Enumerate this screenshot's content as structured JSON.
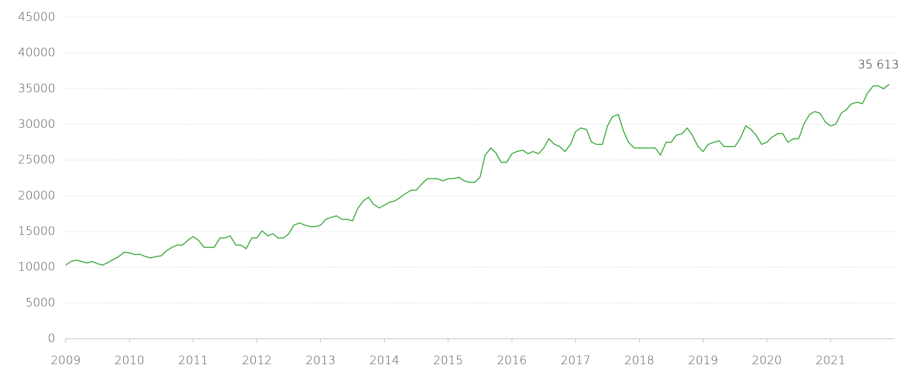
{
  "chart_data": {
    "type": "line",
    "annotation": "35 613",
    "xlim": [
      2009,
      2022
    ],
    "xticks": [
      2009,
      2010,
      2011,
      2012,
      2013,
      2014,
      2015,
      2016,
      2017,
      2018,
      2019,
      2020,
      2021
    ],
    "ylim": [
      0,
      45000
    ],
    "yticks": [
      0,
      5000,
      10000,
      15000,
      20000,
      25000,
      30000,
      35000,
      40000,
      45000
    ],
    "grid": true,
    "x": [
      2009.0,
      2009.08,
      2009.17,
      2009.25,
      2009.33,
      2009.42,
      2009.5,
      2009.58,
      2009.67,
      2009.75,
      2009.83,
      2009.92,
      2010.0,
      2010.08,
      2010.17,
      2010.25,
      2010.33,
      2010.42,
      2010.5,
      2010.58,
      2010.67,
      2010.75,
      2010.83,
      2010.92,
      2011.0,
      2011.08,
      2011.17,
      2011.25,
      2011.33,
      2011.42,
      2011.5,
      2011.58,
      2011.67,
      2011.75,
      2011.83,
      2011.92,
      2012.0,
      2012.08,
      2012.17,
      2012.25,
      2012.33,
      2012.42,
      2012.5,
      2012.58,
      2012.67,
      2012.75,
      2012.83,
      2012.92,
      2013.0,
      2013.08,
      2013.17,
      2013.25,
      2013.33,
      2013.42,
      2013.5,
      2013.58,
      2013.67,
      2013.75,
      2013.83,
      2013.92,
      2014.0,
      2014.08,
      2014.17,
      2014.25,
      2014.33,
      2014.42,
      2014.5,
      2014.58,
      2014.67,
      2014.75,
      2014.83,
      2014.92,
      2015.0,
      2015.08,
      2015.17,
      2015.25,
      2015.33,
      2015.42,
      2015.5,
      2015.58,
      2015.67,
      2015.75,
      2015.83,
      2015.92,
      2016.0,
      2016.08,
      2016.17,
      2016.25,
      2016.33,
      2016.42,
      2016.5,
      2016.58,
      2016.67,
      2016.75,
      2016.83,
      2016.92,
      2017.0,
      2017.08,
      2017.17,
      2017.25,
      2017.33,
      2017.42,
      2017.5,
      2017.58,
      2017.67,
      2017.75,
      2017.83,
      2017.92,
      2018.0,
      2018.08,
      2018.17,
      2018.25,
      2018.33,
      2018.42,
      2018.5,
      2018.58,
      2018.67,
      2018.75,
      2018.83,
      2018.92,
      2019.0,
      2019.08,
      2019.17,
      2019.25,
      2019.33,
      2019.42,
      2019.5,
      2019.58,
      2019.67,
      2019.75,
      2019.83,
      2019.92,
      2020.0,
      2020.08,
      2020.17,
      2020.25,
      2020.33,
      2020.42,
      2020.5,
      2020.58,
      2020.67,
      2020.75,
      2020.83,
      2020.92,
      2021.0,
      2021.08,
      2021.17,
      2021.25,
      2021.33,
      2021.42,
      2021.5,
      2021.58,
      2021.67,
      2021.75,
      2021.83,
      2021.92
    ],
    "series": [
      {
        "color": "#3aaa3a",
        "values": [
          10300,
          10800,
          11000,
          10800,
          10600,
          10800,
          10500,
          10300,
          10700,
          11100,
          11500,
          12100,
          12000,
          11800,
          11800,
          11500,
          11300,
          11500,
          11600,
          12300,
          12800,
          13100,
          13100,
          13800,
          14300,
          13800,
          12800,
          12800,
          12800,
          14100,
          14100,
          14400,
          13100,
          13100,
          12600,
          14100,
          14100,
          15100,
          14400,
          14700,
          14100,
          14100,
          14700,
          15900,
          16200,
          15900,
          15700,
          15700,
          15900,
          16700,
          17000,
          17200,
          16700,
          16700,
          16500,
          18200,
          19300,
          19800,
          18800,
          18300,
          18700,
          19100,
          19300,
          19800,
          20300,
          20800,
          20800,
          21600,
          22400,
          22400,
          22400,
          22100,
          22400,
          22400,
          22600,
          22100,
          21900,
          21900,
          22600,
          25700,
          26700,
          26000,
          24700,
          24700,
          25900,
          26200,
          26400,
          25900,
          26200,
          25900,
          26700,
          28000,
          27200,
          26900,
          26200,
          27200,
          29000,
          29500,
          29300,
          27500,
          27200,
          27200,
          29800,
          31100,
          31400,
          29100,
          27500,
          26700,
          26700,
          26700,
          26700,
          26700,
          25700,
          27500,
          27500,
          28500,
          28700,
          29500,
          28500,
          26900,
          26200,
          27200,
          27500,
          27700,
          26900,
          26900,
          26900,
          28000,
          29800,
          29300,
          28500,
          27200,
          27500,
          28200,
          28700,
          28700,
          27500,
          28000,
          28000,
          30000,
          31400,
          31800,
          31600,
          30300,
          29800,
          30000,
          31600,
          32100,
          32900,
          33100,
          32900,
          34400,
          35400,
          35400,
          35000,
          35613
        ]
      }
    ]
  }
}
